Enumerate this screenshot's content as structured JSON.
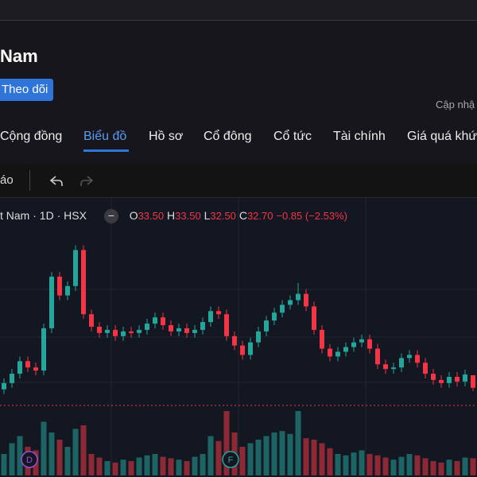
{
  "header": {
    "title": "Nam",
    "follow_button": "Theo dõi",
    "updated": "Cập nhậ"
  },
  "tabs": [
    "Cộng đồng",
    "Biểu đồ",
    "Hồ sơ",
    "Cổ đông",
    "Cổ tức",
    "Tài chính",
    "Giá quá khứ"
  ],
  "toolbar": {
    "item": "áo"
  },
  "legend": {
    "symbol": "t Nam · 1D · HSX",
    "open_label": "O",
    "open": "33.50",
    "high_label": "H",
    "high": "33.50",
    "low_label": "L",
    "low": "32.50",
    "close_label": "C",
    "close": "32.70",
    "change": "−0.85 (−2.53%)"
  },
  "events": [
    "D",
    "F"
  ],
  "chart_data": {
    "type": "candlestick",
    "up_color": "#26a69a",
    "down_color": "#f23645",
    "ylim": [
      27,
      43
    ],
    "volume_lim": [
      0,
      100
    ],
    "open": [
      32.6,
      33.0,
      33.6,
      34.4,
      34.0,
      33.8,
      36.5,
      39.8,
      38.6,
      39.2,
      41.5,
      37.4,
      36.6,
      36.2,
      36.4,
      36.0,
      36.3,
      36.2,
      36.4,
      36.8,
      37.2,
      36.7,
      36.3,
      36.5,
      36.2,
      36.4,
      36.9,
      37.6,
      37.4,
      36.0,
      35.4,
      34.8,
      35.6,
      36.3,
      37.0,
      37.5,
      38.0,
      38.3,
      38.7,
      37.9,
      36.4,
      35.2,
      34.7,
      35.0,
      35.3,
      35.6,
      35.8,
      35.2,
      34.2,
      33.9,
      34.0,
      34.6,
      34.8,
      34.3,
      33.6,
      33.2,
      33.0,
      33.4,
      33.1,
      33.5
    ],
    "high": [
      33.3,
      33.9,
      34.7,
      34.7,
      34.3,
      36.8,
      40.1,
      40.1,
      39.5,
      41.8,
      41.8,
      37.7,
      36.9,
      36.7,
      36.7,
      36.6,
      36.6,
      36.7,
      37.1,
      37.5,
      37.5,
      37.0,
      36.8,
      36.8,
      36.7,
      37.2,
      37.9,
      37.9,
      37.7,
      36.3,
      35.7,
      35.9,
      36.6,
      37.3,
      37.8,
      38.3,
      38.6,
      39.4,
      39.0,
      38.2,
      36.7,
      35.5,
      35.3,
      35.6,
      35.9,
      36.1,
      36.1,
      35.5,
      34.5,
      34.3,
      34.9,
      35.1,
      35.1,
      34.6,
      33.9,
      33.5,
      33.7,
      33.7,
      33.85,
      33.5
    ],
    "low": [
      32.3,
      32.7,
      33.3,
      33.7,
      33.5,
      33.5,
      36.2,
      38.3,
      38.3,
      38.9,
      37.1,
      36.3,
      35.9,
      35.9,
      35.7,
      35.7,
      35.9,
      35.9,
      36.1,
      36.5,
      36.4,
      36.0,
      36.0,
      35.9,
      35.9,
      36.1,
      36.6,
      37.1,
      35.7,
      35.1,
      34.5,
      34.5,
      35.3,
      36.0,
      36.7,
      37.2,
      37.7,
      38.0,
      37.6,
      36.1,
      34.9,
      34.4,
      34.4,
      34.7,
      35.0,
      35.3,
      34.9,
      33.9,
      33.6,
      33.6,
      33.7,
      34.3,
      34.0,
      33.3,
      32.9,
      32.7,
      32.7,
      32.8,
      32.8,
      32.5
    ],
    "close": [
      33.0,
      33.6,
      34.4,
      34.0,
      33.8,
      36.5,
      39.8,
      38.6,
      39.2,
      41.5,
      37.4,
      36.6,
      36.2,
      36.4,
      36.0,
      36.3,
      36.2,
      36.4,
      36.8,
      37.2,
      36.7,
      36.3,
      36.5,
      36.2,
      36.4,
      36.9,
      37.6,
      37.4,
      36.0,
      35.4,
      34.8,
      35.6,
      36.3,
      37.0,
      37.5,
      38.0,
      38.3,
      38.7,
      37.9,
      36.4,
      35.2,
      34.7,
      35.0,
      35.3,
      35.6,
      35.8,
      35.2,
      34.2,
      33.9,
      34.0,
      34.6,
      34.8,
      34.3,
      33.6,
      33.2,
      33.0,
      33.4,
      33.1,
      33.55,
      32.7
    ],
    "volume": [
      30,
      45,
      55,
      40,
      35,
      75,
      60,
      50,
      40,
      65,
      70,
      30,
      25,
      20,
      18,
      22,
      20,
      25,
      28,
      30,
      26,
      24,
      22,
      20,
      26,
      30,
      55,
      48,
      90,
      60,
      40,
      45,
      50,
      55,
      60,
      62,
      58,
      90,
      52,
      50,
      45,
      38,
      30,
      28,
      32,
      35,
      30,
      28,
      25,
      22,
      26,
      30,
      28,
      24,
      20,
      18,
      22,
      20,
      25,
      24
    ]
  }
}
